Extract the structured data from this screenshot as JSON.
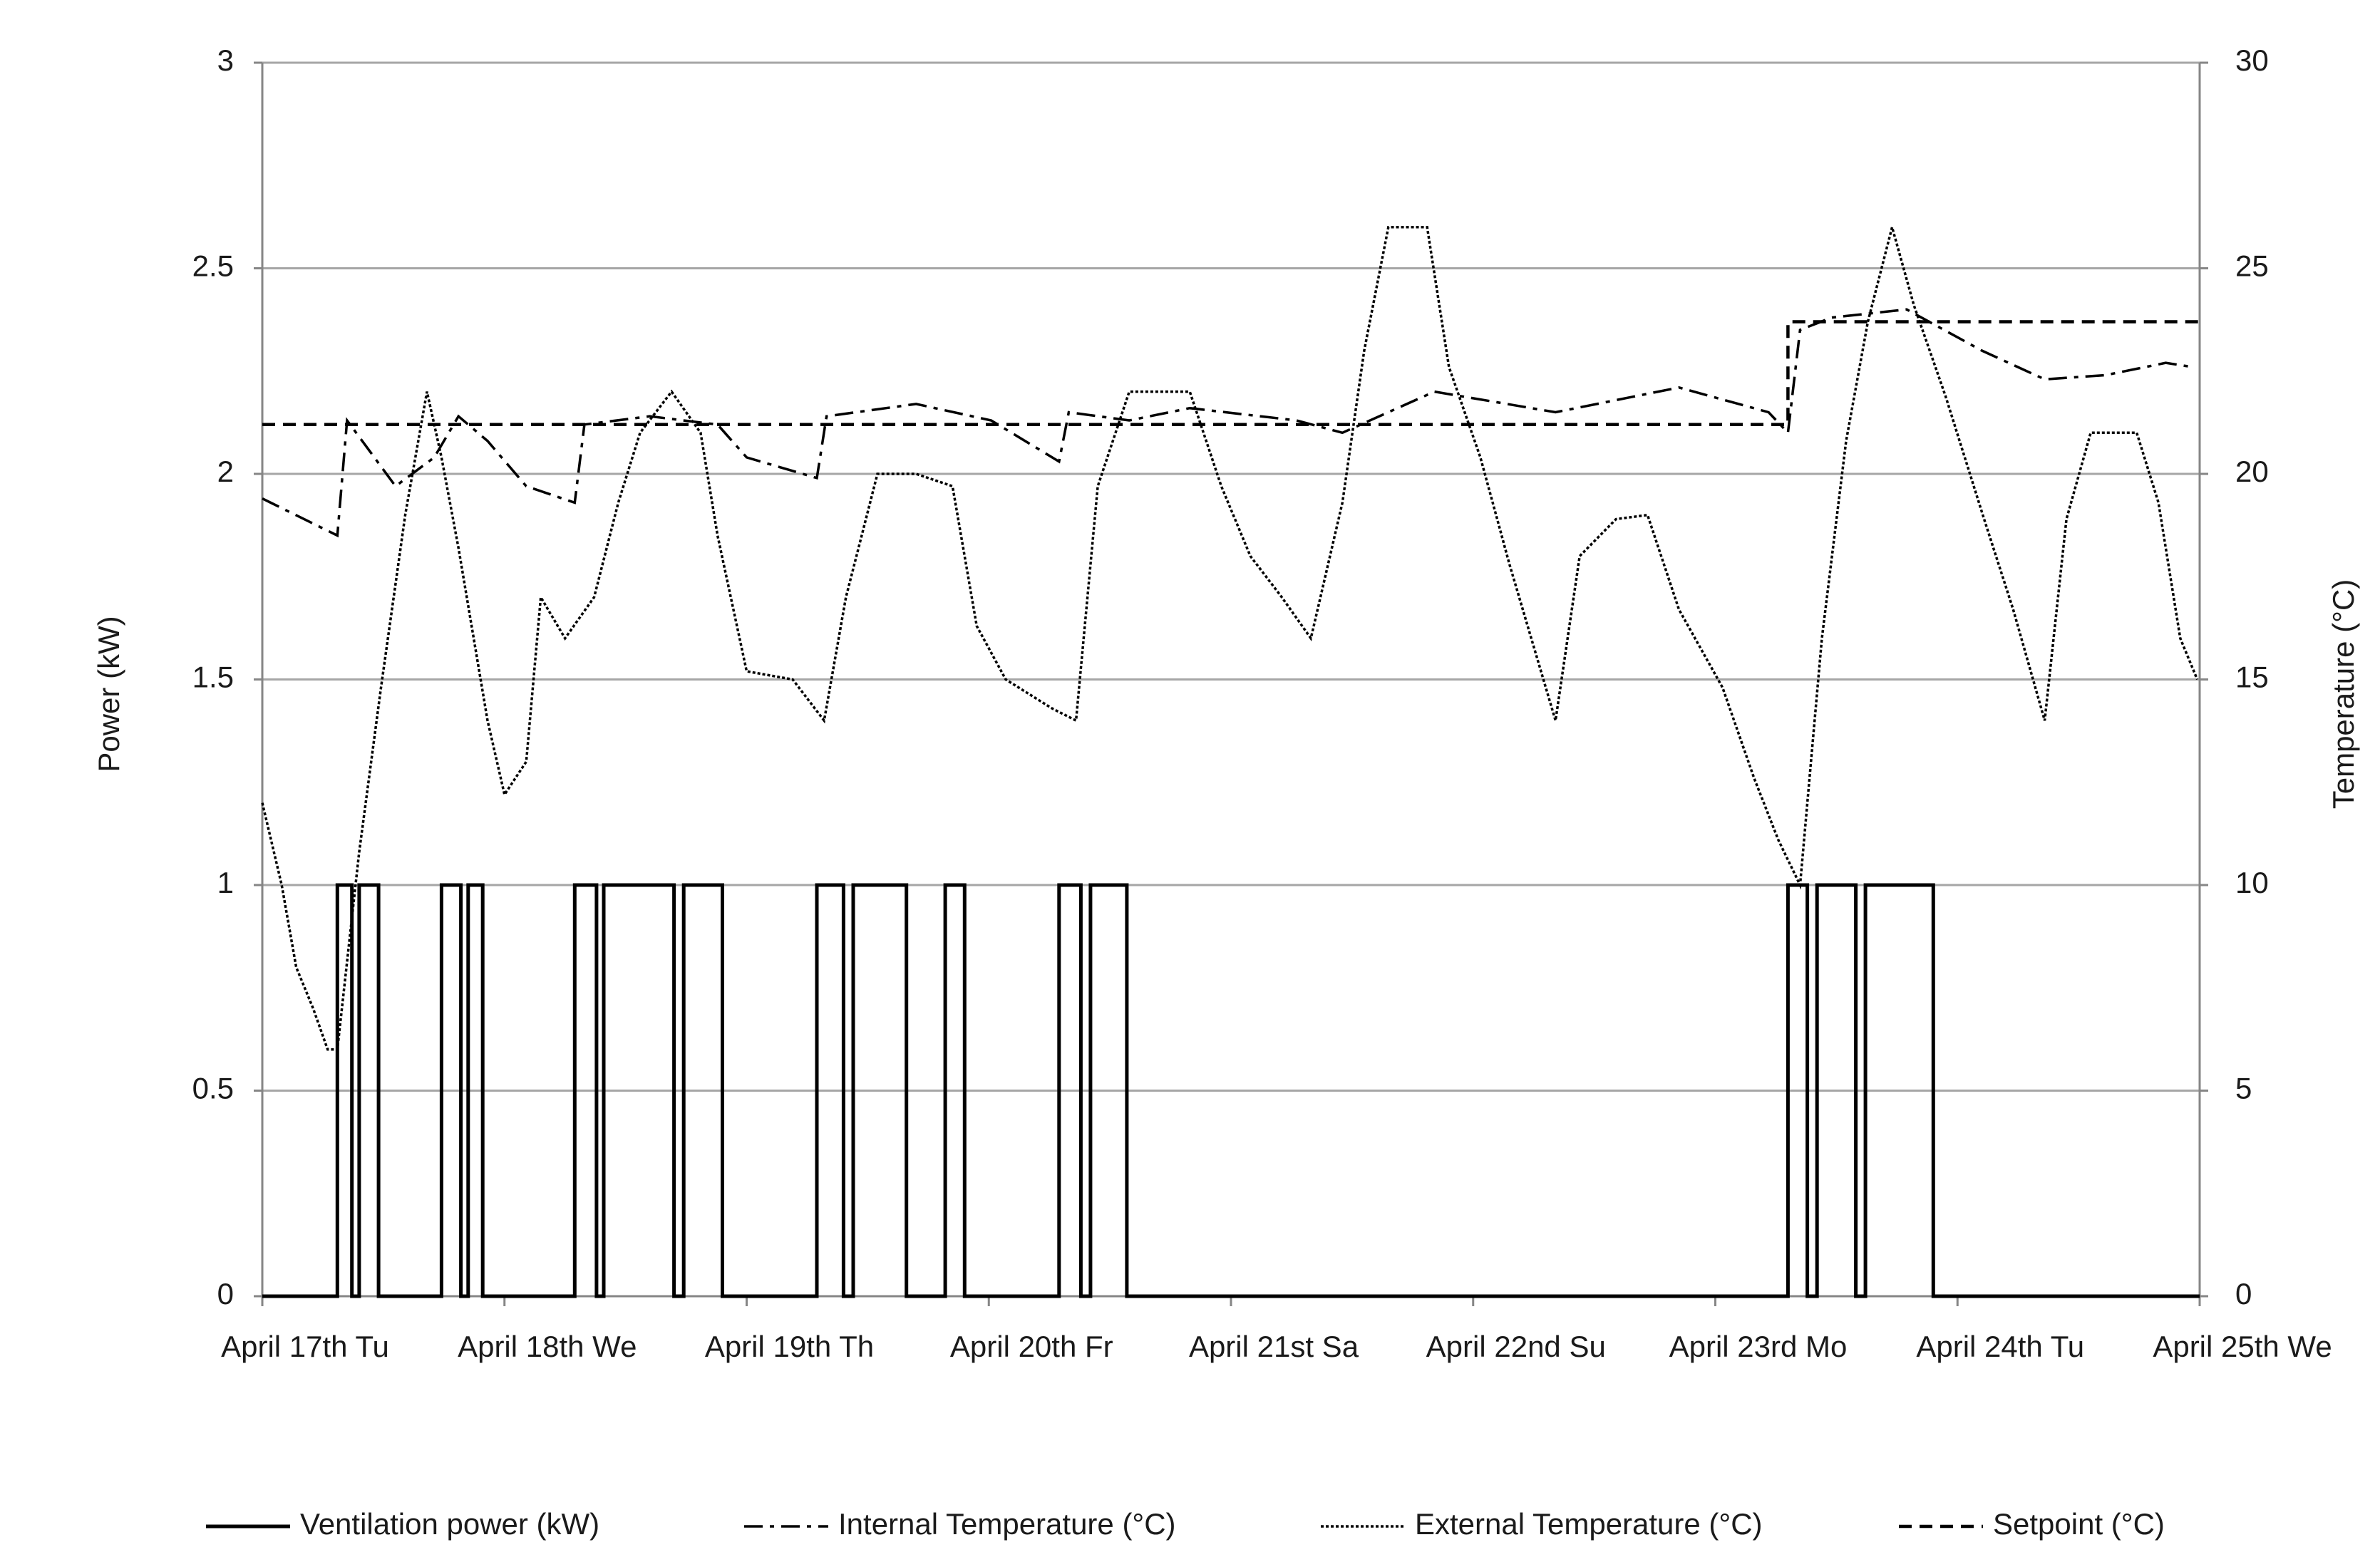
{
  "chart_data": {
    "type": "line",
    "y_label": "Power (kW)",
    "y2_label": "Temperature (°C)",
    "xlim": [
      0,
      8
    ],
    "xticks": [
      {
        "value": 0,
        "label": "April 17th Tu"
      },
      {
        "value": 1,
        "label": "April 18th We"
      },
      {
        "value": 2,
        "label": "April 19th Th"
      },
      {
        "value": 3,
        "label": "April 20th Fr"
      },
      {
        "value": 4,
        "label": "April 21st Sa"
      },
      {
        "value": 5,
        "label": "April 22nd Su"
      },
      {
        "value": 6,
        "label": "April 23rd Mo"
      },
      {
        "value": 7,
        "label": "April 24th Tu"
      },
      {
        "value": 8,
        "label": "April 25th We"
      }
    ],
    "ylim": [
      0,
      3
    ],
    "yticks": [
      0,
      0.5,
      1,
      1.5,
      2,
      2.5,
      3
    ],
    "y2lim": [
      0,
      30
    ],
    "y2ticks": [
      0,
      5,
      10,
      15,
      20,
      25,
      30
    ],
    "grid": true,
    "legend": "bottom",
    "series": [
      {
        "name": "Ventilation power (kW)",
        "color": "#000000",
        "style": "solid",
        "axis": "y",
        "x": [
          0,
          0.31,
          0.31,
          0.37,
          0.37,
          0.4,
          0.4,
          0.48,
          0.48,
          0.74,
          0.74,
          0.82,
          0.82,
          0.85,
          0.85,
          0.91,
          0.91,
          1.29,
          1.29,
          1.38,
          1.38,
          1.41,
          1.41,
          1.7,
          1.7,
          1.74,
          1.74,
          1.9,
          1.9,
          2.29,
          2.29,
          2.4,
          2.4,
          2.44,
          2.44,
          2.66,
          2.66,
          2.82,
          2.82,
          2.9,
          2.9,
          3.29,
          3.29,
          3.38,
          3.38,
          3.42,
          3.42,
          3.57,
          3.57,
          6.3,
          6.3,
          6.38,
          6.38,
          6.42,
          6.42,
          6.58,
          6.58,
          6.62,
          6.62,
          6.9,
          6.9,
          8
        ],
        "values": [
          0,
          0,
          1,
          1,
          0,
          0,
          1,
          1,
          0,
          0,
          1,
          1,
          0,
          0,
          1,
          1,
          0,
          0,
          1,
          1,
          0,
          0,
          1,
          1,
          0,
          0,
          1,
          1,
          0,
          0,
          1,
          1,
          0,
          0,
          1,
          1,
          0,
          0,
          1,
          1,
          0,
          0,
          1,
          1,
          0,
          0,
          1,
          1,
          0,
          0,
          1,
          1,
          0,
          0,
          1,
          1,
          0,
          0,
          1,
          1,
          0,
          0
        ]
      },
      {
        "name": "Internal Temperature (°C)",
        "color": "#000000",
        "style": "dash-dot",
        "axis": "y2",
        "x": [
          0,
          0.31,
          0.35,
          0.45,
          0.55,
          0.71,
          0.81,
          0.93,
          1.09,
          1.29,
          1.33,
          1.6,
          1.88,
          2.0,
          2.29,
          2.33,
          2.7,
          3.01,
          3.29,
          3.33,
          3.58,
          3.83,
          4.27,
          4.46,
          4.84,
          5.34,
          5.85,
          6.22,
          6.3,
          6.35,
          6.48,
          6.79,
          7.1,
          7.36,
          7.61,
          7.86,
          7.97
        ],
        "values": [
          19.4,
          18.5,
          21.3,
          20.5,
          19.7,
          20.4,
          21.4,
          20.8,
          19.7,
          19.3,
          21.2,
          21.4,
          21.2,
          20.4,
          19.9,
          21.4,
          21.7,
          21.3,
          20.3,
          21.5,
          21.3,
          21.6,
          21.3,
          21.0,
          22.0,
          21.5,
          22.1,
          21.5,
          21.0,
          23.5,
          23.8,
          24.0,
          23.0,
          22.3,
          22.4,
          22.7,
          22.6
        ]
      },
      {
        "name": "External Temperature (°C)",
        "color": "#000000",
        "style": "dotted",
        "axis": "y2",
        "x": [
          0,
          0.08,
          0.14,
          0.21,
          0.27,
          0.31,
          0.4,
          0.49,
          0.59,
          0.68,
          0.74,
          0.81,
          0.93,
          1.0,
          1.09,
          1.15,
          1.25,
          1.37,
          1.47,
          1.56,
          1.69,
          1.81,
          1.88,
          2.0,
          2.19,
          2.32,
          2.41,
          2.54,
          2.7,
          2.85,
          2.95,
          3.07,
          3.26,
          3.36,
          3.45,
          3.58,
          3.83,
          3.96,
          4.08,
          4.21,
          4.33,
          4.46,
          4.55,
          4.65,
          4.81,
          4.9,
          5.03,
          5.15,
          5.28,
          5.34,
          5.44,
          5.59,
          5.72,
          5.85,
          6.03,
          6.16,
          6.26,
          6.35,
          6.44,
          6.54,
          6.63,
          6.73,
          6.82,
          6.95,
          7.11,
          7.23,
          7.36,
          7.45,
          7.55,
          7.74,
          7.83,
          7.92,
          7.99
        ],
        "values": [
          12,
          10,
          8,
          7,
          6,
          6,
          10.8,
          14.8,
          19,
          22,
          20.4,
          18.2,
          14,
          12.2,
          13,
          17,
          16,
          17,
          19.3,
          21,
          22,
          21,
          18.5,
          15.2,
          15,
          14,
          17,
          20,
          20,
          19.7,
          16.3,
          15,
          14.3,
          14,
          19.7,
          22,
          22,
          19.7,
          18,
          17,
          16,
          19.3,
          23,
          26,
          26,
          22.6,
          20.4,
          17.8,
          15.2,
          14,
          18,
          18.9,
          19,
          16.7,
          14.8,
          12.6,
          11.1,
          10,
          16,
          20.8,
          23.7,
          26,
          24.1,
          21.9,
          18.9,
          16.7,
          14,
          18.9,
          21,
          21,
          19.3,
          16,
          15
        ]
      },
      {
        "name": "Setpoint (°C)",
        "color": "#000000",
        "style": "dashed",
        "axis": "y2",
        "x": [
          0,
          6.3,
          6.3,
          8
        ],
        "values": [
          21.2,
          21.2,
          23.7,
          23.7
        ]
      }
    ]
  }
}
